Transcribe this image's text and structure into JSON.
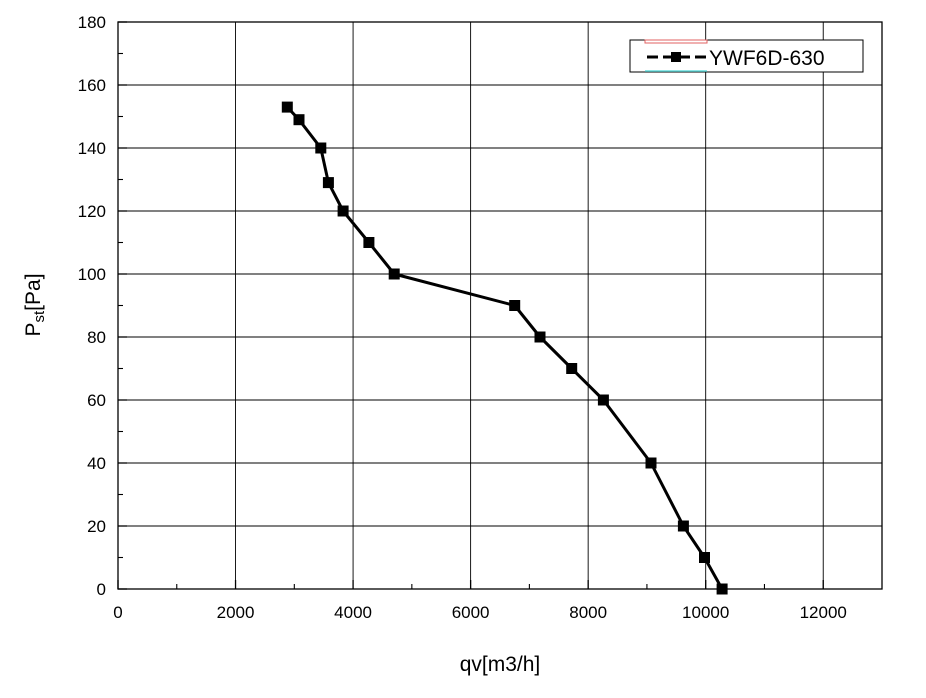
{
  "chart_data": {
    "type": "line",
    "title": "",
    "xlabel": "qv[m3/h]",
    "ylabel_main": "P",
    "ylabel_sub": "st",
    "ylabel_tail": "[Pa]",
    "xlim": [
      0,
      13000
    ],
    "ylim": [
      0,
      180
    ],
    "x_ticks": [
      "0",
      "2000",
      "4000",
      "6000",
      "8000",
      "10000",
      "12000"
    ],
    "y_ticks": [
      "0",
      "20",
      "40",
      "60",
      "80",
      "100",
      "120",
      "140",
      "160",
      "180"
    ],
    "grid": true,
    "legend_position": "top-right",
    "series": [
      {
        "name": "YWF6D-630",
        "color": "#000000",
        "marker": "square",
        "x": [
          2880,
          3080,
          3450,
          3580,
          3830,
          4270,
          4700,
          6750,
          7180,
          7720,
          8260,
          9070,
          9620,
          9980,
          10280
        ],
        "y": [
          153,
          149,
          140,
          129,
          120,
          110,
          100,
          90,
          80,
          70,
          60,
          40,
          20,
          10,
          0
        ]
      }
    ]
  }
}
